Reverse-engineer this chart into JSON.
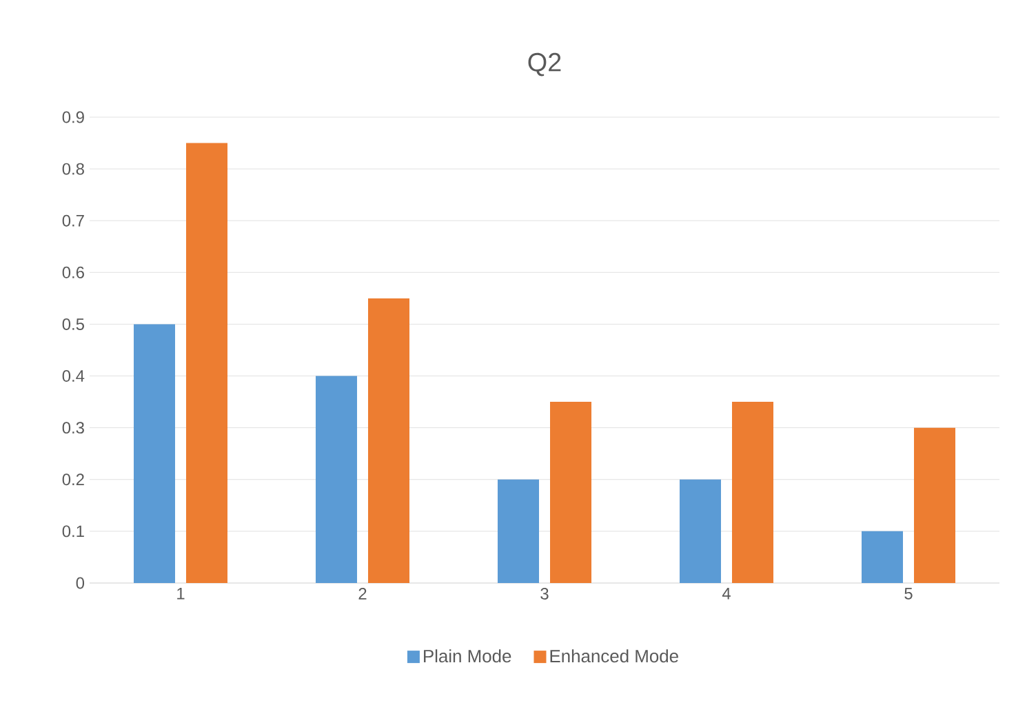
{
  "chart_data": {
    "type": "bar",
    "title": "Q2",
    "categories": [
      "1",
      "2",
      "3",
      "4",
      "5"
    ],
    "series": [
      {
        "name": "Plain Mode",
        "color": "#5b9bd5",
        "values": [
          0.5,
          0.4,
          0.2,
          0.2,
          0.1
        ]
      },
      {
        "name": "Enhanced Mode",
        "color": "#ed7d31",
        "values": [
          0.85,
          0.55,
          0.35,
          0.35,
          0.3
        ]
      }
    ],
    "ylim": [
      0,
      0.9
    ],
    "yticks": [
      0,
      0.1,
      0.2,
      0.3,
      0.4,
      0.5,
      0.6,
      0.7,
      0.8,
      0.9
    ],
    "grid": "y",
    "legend": "bottom"
  }
}
